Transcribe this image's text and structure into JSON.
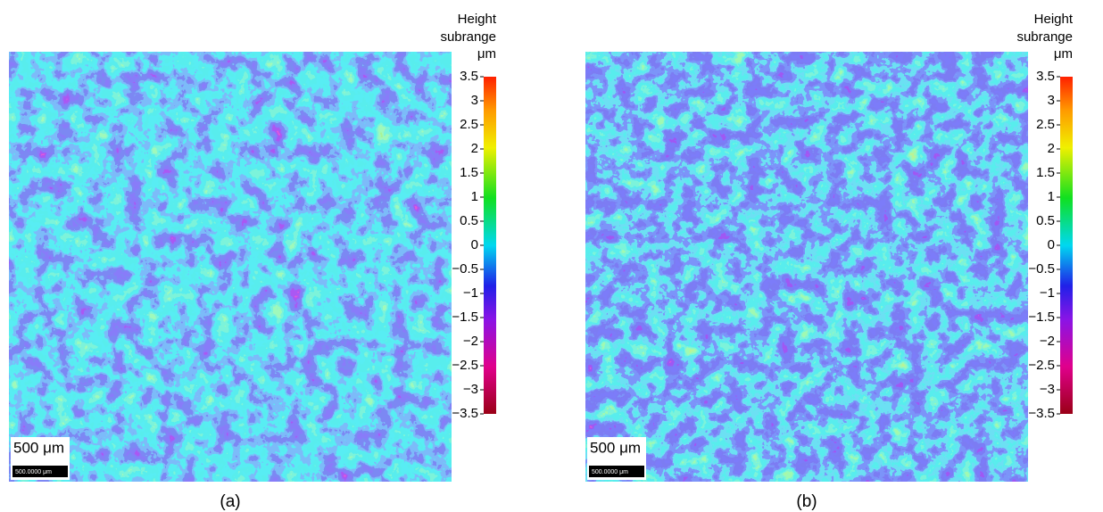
{
  "panels": [
    {
      "caption": "(a)",
      "scale_label": "500 μm",
      "scale_bar_label": "500.0000 μm",
      "colorbar": {
        "title": [
          "Height",
          "subrange"
        ],
        "unit": "μm",
        "clim": [
          -3.5,
          3.5
        ],
        "ticks": [
          3.5,
          3,
          2.5,
          2,
          1.5,
          1,
          0.5,
          0,
          {
            "value": -0.5,
            "label": "−0.5"
          },
          {
            "value": -1,
            "label": "−1"
          },
          {
            "value": -1.5,
            "label": "−1.5"
          },
          {
            "value": -2,
            "label": "−2"
          },
          {
            "value": -2.5,
            "label": "−2.5"
          },
          {
            "value": -3,
            "label": "−3"
          },
          {
            "value": -3.5,
            "label": "−3.5"
          }
        ]
      }
    },
    {
      "caption": "(b)",
      "scale_label": "500 μm",
      "scale_bar_label": "500.0000 μm",
      "colorbar": {
        "title": [
          "Height",
          "subrange"
        ],
        "unit": "μm",
        "clim": [
          -3.5,
          3.5
        ],
        "ticks": [
          3.5,
          3,
          2.5,
          2,
          1.5,
          1,
          0.5,
          0,
          {
            "value": -0.5,
            "label": "−0.5"
          },
          {
            "value": -1,
            "label": "−1"
          },
          {
            "value": -1.5,
            "label": "−1.5"
          },
          {
            "value": -2,
            "label": "−2"
          },
          {
            "value": -2.5,
            "label": "−2.5"
          },
          {
            "value": -3,
            "label": "−3"
          },
          {
            "value": -3.5,
            "label": "−3.5"
          }
        ]
      }
    }
  ]
}
